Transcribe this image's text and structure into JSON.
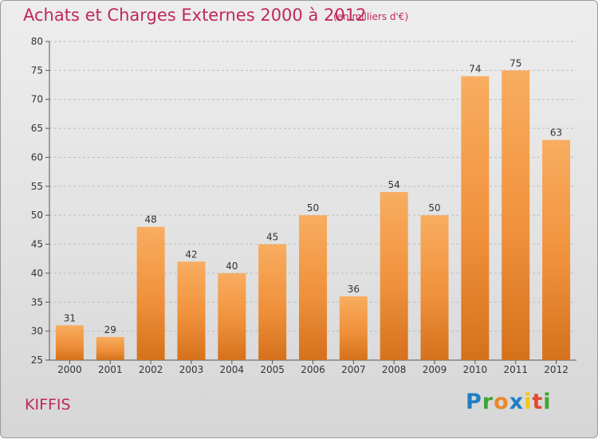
{
  "chart_data": {
    "type": "bar",
    "title": "Achats et Charges Externes 2000 à 2012",
    "subtitle": "(en milliers d'€)",
    "categories": [
      "2000",
      "2001",
      "2002",
      "2003",
      "2004",
      "2005",
      "2006",
      "2007",
      "2008",
      "2009",
      "2010",
      "2011",
      "2012"
    ],
    "values": [
      31,
      29,
      48,
      42,
      40,
      45,
      50,
      36,
      54,
      50,
      74,
      75,
      63
    ],
    "ylim": [
      25,
      80
    ],
    "yticks": [
      25,
      30,
      35,
      40,
      45,
      50,
      55,
      60,
      65,
      70,
      75,
      80
    ],
    "grid": true,
    "bar_color": "#f0913b",
    "bar_color_light": "#f8ad60",
    "bar_color_dark": "#d5711c"
  },
  "footer": {
    "commune": "KIFFIS",
    "logo_letters": [
      "P",
      "r",
      "o",
      "x",
      "i",
      "t",
      "i"
    ],
    "logo_colors": [
      "#1f7fc4",
      "#3fa535",
      "#e8892a",
      "#1f7fc4",
      "#f3c614",
      "#e24a2b",
      "#3fa535"
    ]
  }
}
